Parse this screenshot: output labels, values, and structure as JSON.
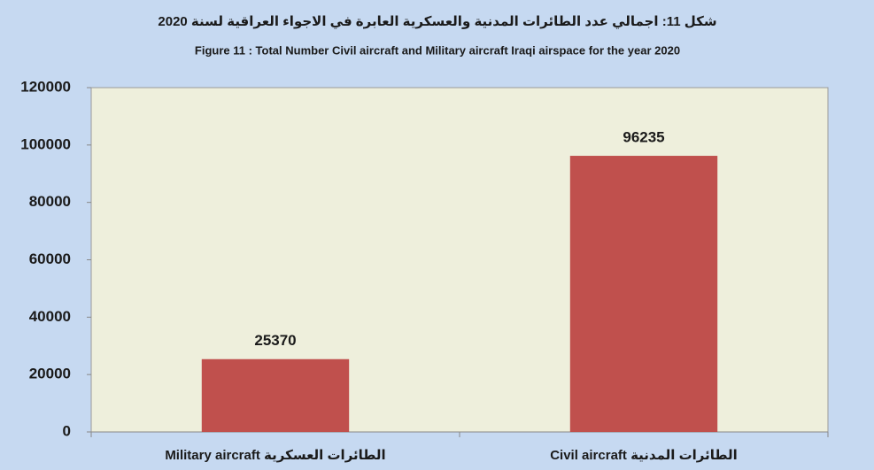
{
  "chart_data": {
    "type": "bar",
    "title": "شكل 11: اجمالي عدد الطائرات المدنية والعسكرية العابرة في الاجواء العراقية لسنة 2020",
    "subtitle": "Figure 11 : Total Number Civil aircraft and Military aircraft Iraqi airspace for the year 2020",
    "categories": [
      "Military aircraft الطائرات العسكرية",
      "Civil aircraft     الطائرات المدنية"
    ],
    "values": [
      25370,
      96235
    ],
    "color": "#c0504d",
    "ylim": [
      0,
      120000
    ],
    "yticks": [
      0,
      20000,
      40000,
      60000,
      80000,
      100000,
      120000
    ],
    "grid": false
  }
}
